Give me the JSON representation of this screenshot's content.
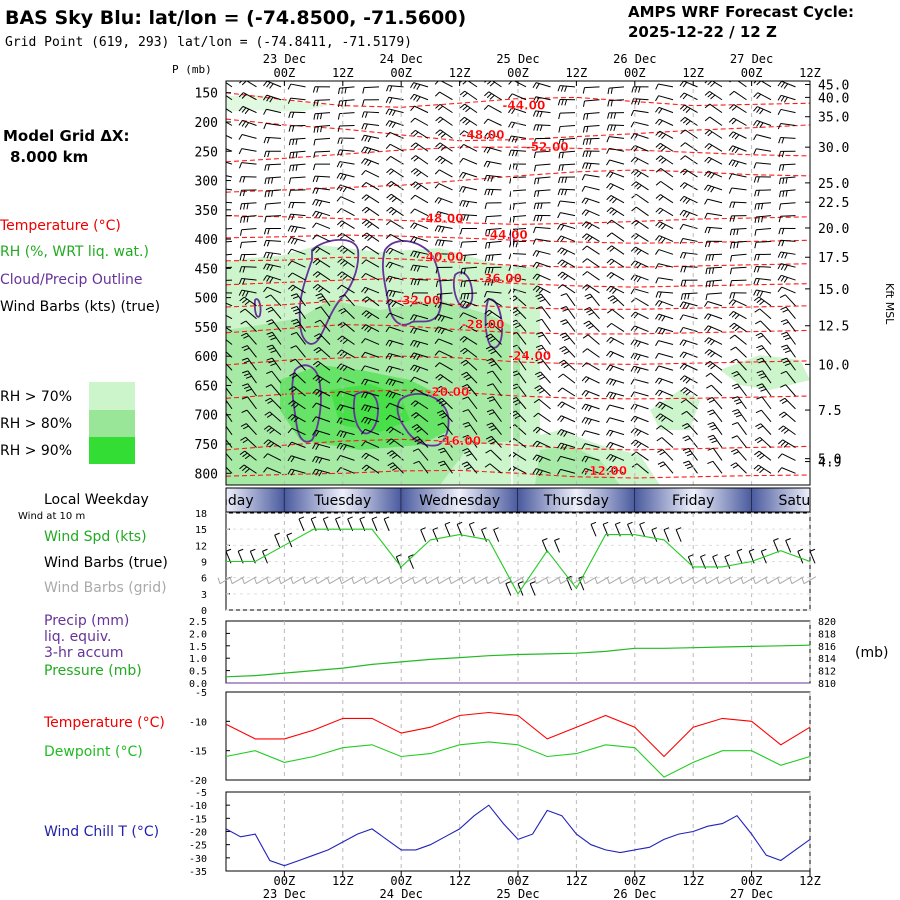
{
  "header": {
    "title": "BAS Sky Blu:  lat/lon = (-74.8500, -71.5600)",
    "grid_point": "Grid Point (619, 293) lat/lon = (-74.8411, -71.5179)",
    "cycle_label": "AMPS WRF Forecast Cycle:",
    "cycle_value": "2025-12-22 / 12  Z",
    "model_grid_label": "Model Grid ΔX:",
    "model_grid_value": "8.000 km"
  },
  "colors": {
    "temperature": "#ff0000",
    "temperature_line": "#ff1a1a",
    "rh": "#22bb22",
    "cloud": "#663399",
    "wind": "#000000",
    "wind_grid": "#aaaaaa",
    "rh70": "#ccf5cc",
    "rh80": "#99e699",
    "rh90": "#33dd33",
    "speed_line": "#22cc22",
    "dewpoint": "#22cc22",
    "windchill": "#2222bb",
    "pressure": "#22bb22",
    "precip": "#663399",
    "day_band_dark": "#4a5a9e",
    "day_band_light": "#e8ecf8"
  },
  "time_axis": {
    "labels": [
      "00Z",
      "12Z",
      "00Z",
      "12Z",
      "00Z",
      "12Z",
      "00Z",
      "12Z",
      "00Z",
      "12Z"
    ],
    "hours": [
      12,
      24,
      36,
      48,
      60,
      72,
      84,
      96,
      108,
      120
    ],
    "dates": [
      {
        "label": "23 Dec",
        "hour": 12
      },
      {
        "label": "24 Dec",
        "hour": 36
      },
      {
        "label": "25 Dec",
        "hour": 60
      },
      {
        "label": "26 Dec",
        "hour": 84
      },
      {
        "label": "27 Dec",
        "hour": 108
      }
    ],
    "range_hours": [
      0,
      120
    ]
  },
  "weekdays": {
    "title": "Local Weekday",
    "days": [
      {
        "label": "Monday",
        "start": -12,
        "end": 12
      },
      {
        "label": "Tuesday",
        "start": 12,
        "end": 36
      },
      {
        "label": "Wednesday",
        "start": 36,
        "end": 60
      },
      {
        "label": "Thursday",
        "start": 60,
        "end": 84
      },
      {
        "label": "Friday",
        "start": 84,
        "end": 108
      },
      {
        "label": "Saturday",
        "start": 108,
        "end": 132
      }
    ]
  },
  "chart_data": [
    {
      "type": "heatmap",
      "name": "upper-air cross section",
      "y_title": "P (mb)",
      "pressure_ticks": [
        150,
        200,
        250,
        300,
        350,
        400,
        450,
        500,
        550,
        600,
        650,
        700,
        750,
        800
      ],
      "ylim": [
        130,
        820
      ],
      "height_ticks": [
        {
          "label": "45.0",
          "p": 136
        },
        {
          "label": "40.0",
          "p": 158
        },
        {
          "label": "35.0",
          "p": 191
        },
        {
          "label": "30.0",
          "p": 243
        },
        {
          "label": "25.0",
          "p": 304
        },
        {
          "label": "22.5",
          "p": 337
        },
        {
          "label": "20.0",
          "p": 381
        },
        {
          "label": "17.5",
          "p": 431
        },
        {
          "label": "15.0",
          "p": 485
        },
        {
          "label": "12.5",
          "p": 548
        },
        {
          "label": "10.0",
          "p": 614
        },
        {
          "label": "7.5",
          "p": 692
        },
        {
          "label": "5.0",
          "p": 775
        },
        {
          "label": "4.9",
          "p": 780
        }
      ],
      "right_axis_title": "Kft MSL",
      "legend": {
        "temperature": "Temperature (°C)",
        "rh": "RH (%, WRT liq. wat.)",
        "cloud": "Cloud/Precip Outline",
        "wind": "Wind Barbs (kts) (true)",
        "rh70": "RH > 70%",
        "rh80": "RH > 80%",
        "rh90": "RH > 90%"
      },
      "temperature_labels": [
        {
          "label": "-44.00",
          "x": 51,
          "p": 172
        },
        {
          "label": "-48.00",
          "x": 44,
          "p": 222
        },
        {
          "label": "-52.00",
          "x": 55,
          "p": 243
        },
        {
          "label": "-48.00",
          "x": 37,
          "p": 365
        },
        {
          "label": "-44.00",
          "x": 48,
          "p": 393
        },
        {
          "label": "-40.00",
          "x": 37,
          "p": 431
        },
        {
          "label": "-36.00",
          "x": 47,
          "p": 467
        },
        {
          "label": "-32.00",
          "x": 33,
          "p": 505
        },
        {
          "label": "-28.00",
          "x": 44,
          "p": 546
        },
        {
          "label": "-24.00",
          "x": 52,
          "p": 600
        },
        {
          "label": "-20.00",
          "x": 38,
          "p": 661
        },
        {
          "label": "-16.00",
          "x": 40,
          "p": 745
        },
        {
          "label": "-12.00",
          "x": 65,
          "p": 796
        }
      ],
      "isotherms": [
        {
          "t": -44,
          "p": [
            150,
            162,
            172,
            175,
            168,
            160,
            158,
            165,
            172,
            170,
            168
          ]
        },
        {
          "t": -48,
          "p": [
            195,
            205,
            212,
            222,
            232,
            230,
            225,
            220,
            214,
            210,
            205
          ]
        },
        {
          "t": -52,
          "p": [
            268,
            262,
            255,
            248,
            243,
            243,
            245,
            248,
            252,
            256,
            258
          ]
        },
        {
          "t": -50,
          "p": [
            320,
            316,
            312,
            308,
            300,
            292,
            285,
            282,
            285,
            290,
            292
          ]
        },
        {
          "t": -48,
          "p": [
            360,
            362,
            365,
            368,
            372,
            375,
            373,
            370,
            366,
            364,
            362
          ]
        },
        {
          "t": -44,
          "p": [
            398,
            396,
            393,
            395,
            398,
            402,
            405,
            407,
            406,
            404,
            402
          ]
        },
        {
          "t": -40,
          "p": [
            437,
            436,
            431,
            434,
            440,
            445,
            448,
            448,
            446,
            444,
            442
          ]
        },
        {
          "t": -36,
          "p": [
            478,
            474,
            470,
            467,
            470,
            476,
            480,
            482,
            480,
            478,
            476
          ]
        },
        {
          "t": -32,
          "p": [
            516,
            512,
            505,
            506,
            512,
            517,
            520,
            520,
            518,
            516,
            514
          ]
        },
        {
          "t": -28,
          "p": [
            560,
            553,
            546,
            548,
            555,
            560,
            562,
            562,
            560,
            558,
            556
          ]
        },
        {
          "t": -24,
          "p": [
            615,
            607,
            603,
            600,
            603,
            610,
            613,
            614,
            612,
            610,
            608
          ]
        },
        {
          "t": -20,
          "p": [
            672,
            665,
            661,
            658,
            662,
            668,
            672,
            673,
            672,
            670,
            668
          ]
        },
        {
          "t": -16,
          "p": [
            760,
            752,
            745,
            742,
            746,
            752,
            758,
            760,
            758,
            756,
            754
          ]
        },
        {
          "t": -12,
          "p": [
            805,
            802,
            800,
            796,
            795,
            800,
            806,
            808,
            806,
            804,
            803
          ]
        }
      ]
    },
    {
      "type": "line",
      "name": "wind panel",
      "labels": {
        "title": "Wind at 10 m",
        "speed": "Wind Spd (kts)",
        "barbs_true": "Wind Barbs (true)",
        "barbs_grid": "Wind Barbs (grid)"
      },
      "y_ticks": [
        0,
        3,
        6,
        9,
        12,
        15,
        18
      ],
      "ylim": [
        0,
        18
      ],
      "x": [
        0,
        6,
        12,
        18,
        24,
        30,
        36,
        42,
        48,
        54,
        60,
        66,
        72,
        78,
        84,
        90,
        96,
        102,
        108,
        114,
        120
      ],
      "wind_speed": [
        9,
        9,
        12,
        15,
        15,
        15,
        8,
        13,
        14,
        13,
        3,
        11,
        4,
        14,
        14,
        13,
        8,
        8,
        9,
        11,
        9
      ]
    },
    {
      "type": "line",
      "name": "precip pressure panel",
      "labels": {
        "precip": "Precip (mm)",
        "precip2": "liq. equiv.",
        "precip3": "3-hr accum",
        "pressure": "Pressure (mb)",
        "right_axis": "(mb)"
      },
      "y_ticks_left": [
        "0.0",
        "0.5",
        "1.0",
        "1.5",
        "2.0",
        "2.5"
      ],
      "ylim_left": [
        0,
        2.5
      ],
      "y_ticks_right": [
        "810",
        "812",
        "814",
        "816",
        "818",
        "820"
      ],
      "ylim_right": [
        810,
        820
      ],
      "x": [
        0,
        6,
        12,
        18,
        24,
        30,
        36,
        42,
        48,
        54,
        60,
        66,
        72,
        78,
        84,
        90,
        96,
        102,
        108,
        114,
        120
      ],
      "pressure": [
        811,
        811.2,
        811.6,
        812,
        812.4,
        813,
        813.4,
        813.8,
        814.1,
        814.4,
        814.6,
        814.7,
        814.8,
        815.1,
        815.6,
        815.6,
        815.7,
        815.8,
        815.9,
        816,
        816.1
      ],
      "precip": [
        0,
        0,
        0,
        0,
        0,
        0,
        0,
        0,
        0,
        0,
        0,
        0,
        0,
        0,
        0,
        0,
        0,
        0,
        0,
        0,
        0
      ]
    },
    {
      "type": "line",
      "name": "temperature dewpoint panel",
      "labels": {
        "temperature": "Temperature (°C)",
        "dewpoint": "Dewpoint (°C)"
      },
      "y_ticks": [
        -20,
        -15,
        -10,
        -5
      ],
      "ylim": [
        -20,
        -5
      ],
      "x": [
        0,
        6,
        12,
        18,
        24,
        30,
        36,
        42,
        48,
        54,
        60,
        66,
        72,
        78,
        84,
        90,
        96,
        102,
        108,
        114,
        120
      ],
      "temperature": [
        -10.5,
        -13,
        -13,
        -11.5,
        -9.5,
        -9.5,
        -12,
        -11,
        -9,
        -8.5,
        -9,
        -13,
        -11,
        -9,
        -11,
        -16,
        -11,
        -9.5,
        -10,
        -14,
        -11
      ],
      "dewpoint": [
        -16,
        -15,
        -17,
        -16,
        -14.5,
        -14,
        -16,
        -15.5,
        -14,
        -13.5,
        -14,
        -16,
        -15.5,
        -14,
        -14.5,
        -19.5,
        -17,
        -15,
        -15,
        -17.5,
        -16
      ]
    },
    {
      "type": "line",
      "name": "wind chill panel",
      "labels": {
        "windchill": "Wind Chill T (°C)"
      },
      "y_ticks": [
        -35,
        -30,
        -25,
        -20,
        -15,
        -10,
        -5
      ],
      "ylim": [
        -35,
        -5
      ],
      "x": [
        0,
        3,
        6,
        9,
        12,
        15,
        18,
        21,
        24,
        27,
        30,
        33,
        36,
        39,
        42,
        45,
        48,
        51,
        54,
        57,
        60,
        63,
        66,
        69,
        72,
        75,
        78,
        81,
        84,
        87,
        90,
        93,
        96,
        99,
        102,
        105,
        108,
        111,
        114,
        117,
        120
      ],
      "windchill": [
        -19,
        -22,
        -21,
        -31,
        -33,
        -31,
        -29,
        -27,
        -24,
        -21,
        -19,
        -23,
        -27,
        -27,
        -25,
        -22,
        -19,
        -14,
        -10,
        -17,
        -23,
        -21,
        -12,
        -14,
        -21,
        -25,
        -27,
        -28,
        -27,
        -26,
        -23,
        -21,
        -20,
        -18,
        -17,
        -14,
        -21,
        -29,
        -31,
        -27,
        -23
      ]
    }
  ]
}
